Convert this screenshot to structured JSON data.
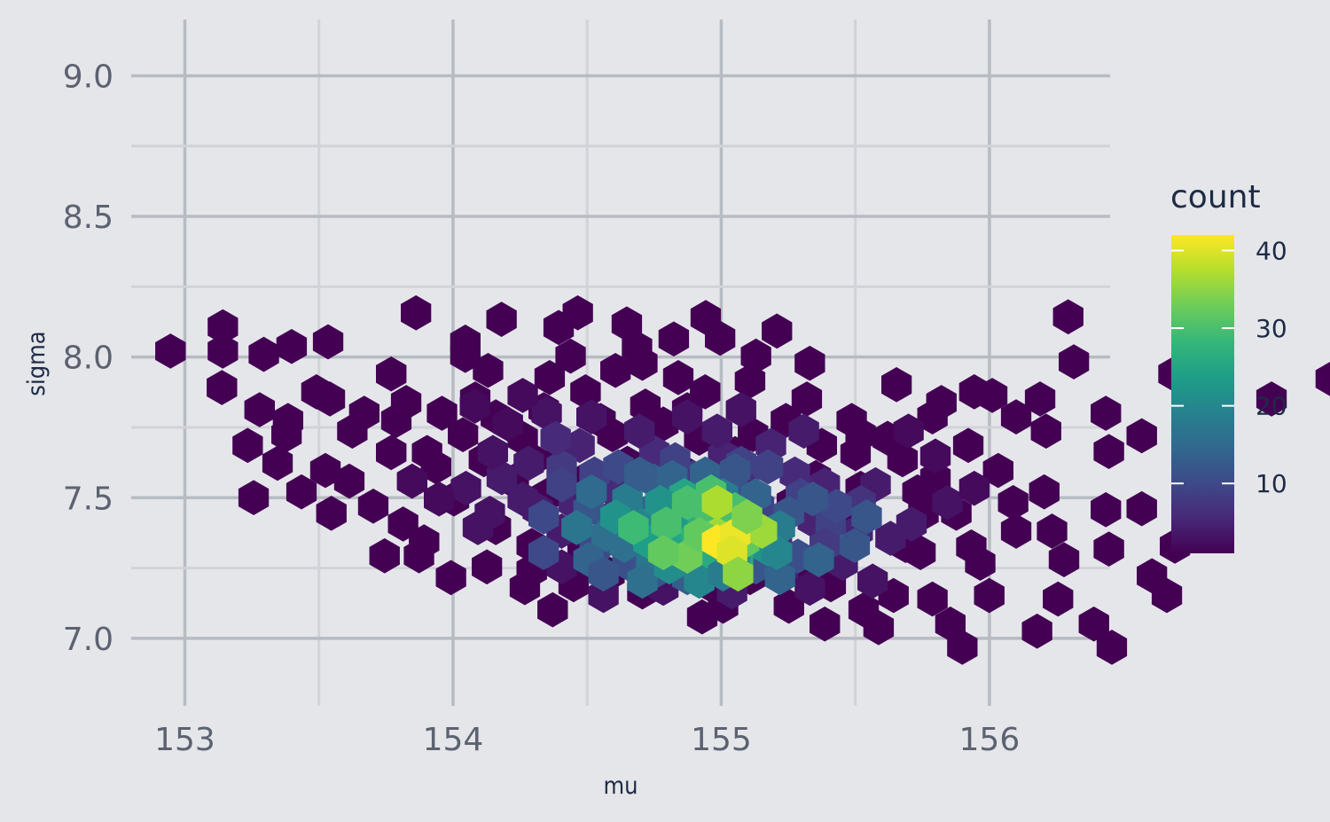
{
  "chart_data": {
    "type": "heatmap",
    "subtype": "hexbin",
    "xlabel": "mu",
    "ylabel": "sigma",
    "xlim": [
      152.8,
      156.45
    ],
    "ylim": [
      6.76,
      9.2
    ],
    "x_ticks": [
      153,
      154,
      155,
      156
    ],
    "y_ticks": [
      7.0,
      7.5,
      8.0,
      8.5,
      9.0
    ],
    "x_tick_labels": [
      "153",
      "154",
      "155",
      "156"
    ],
    "y_tick_labels": [
      "7.0",
      "7.5",
      "8.0",
      "8.5",
      "9.0"
    ],
    "grid": true,
    "legend": {
      "title": "count",
      "placement": "right",
      "colormap": "viridis",
      "range": [
        1,
        42
      ],
      "ticks": [
        10,
        20,
        30,
        40
      ],
      "tick_labels": [
        "10",
        "20",
        "30",
        "40"
      ]
    },
    "colors": [
      "#440154",
      "#482878",
      "#3E4A89",
      "#31688E",
      "#26828E",
      "#1F9E89",
      "#35B779",
      "#6DCD59",
      "#B4DE2C",
      "#FDE725"
    ],
    "bin_width": {
      "mu": 0.1115,
      "sigma": 0.0635
    },
    "grid_origin": {
      "mu": 153.0,
      "sigma": 7.0
    },
    "bins": [
      [
        1.27,
        8.04,
        1
      ],
      [
        1.27,
        8.72,
        1
      ],
      [
        2.64,
        7.95,
        1
      ],
      [
        3.57,
        8.17,
        1
      ],
      [
        4.79,
        8.3,
        1
      ],
      [
        9.38,
        8.29,
        1
      ],
      [
        7.73,
        9.11,
        1
      ],
      [
        10.59,
        8.93,
        1
      ],
      [
        13.14,
        9.11,
        1
      ],
      [
        14.78,
        8.8,
        1
      ],
      [
        17.42,
        8.98,
        1
      ],
      [
        16.35,
        8.38,
        1
      ],
      [
        12.5,
        8.7,
        1
      ],
      [
        15.12,
        8.13,
        1
      ],
      [
        9.38,
        7.92,
        1
      ],
      [
        10.14,
        7.5,
        1
      ],
      [
        -0.48,
        8.04,
        1
      ],
      [
        1.24,
        7.02,
        1
      ],
      [
        4.85,
        6.7,
        1
      ],
      [
        3.45,
        6.1,
        1
      ],
      [
        7.07,
        6.1,
        1
      ],
      [
        9.71,
        6.7,
        1
      ],
      [
        2.3,
        3.94,
        1
      ],
      [
        6.68,
        2.31,
        1
      ],
      [
        7.83,
        2.31,
        1
      ],
      [
        11.37,
        1.42,
        1
      ],
      [
        16.35,
        3.04,
        1
      ],
      [
        17.73,
        1.42,
        1
      ],
      [
        18.4,
        5.17,
        1
      ],
      [
        22.43,
        5.17,
        1
      ],
      [
        25.1,
        4.48,
        1
      ],
      [
        28.74,
        4.1,
        1
      ],
      [
        30.9,
        5.23,
        1
      ],
      [
        32.0,
        5.67,
        1
      ],
      [
        36.34,
        6.7,
        1
      ],
      [
        38.32,
        7.26,
        1
      ],
      [
        29.54,
        9.0,
        1
      ],
      [
        29.73,
        7.74,
        1
      ],
      [
        33.06,
        7.4,
        1
      ],
      [
        32.0,
        3.63,
        1
      ],
      [
        33.11,
        2.58,
        1
      ],
      [
        32.34,
        1.75,
        1
      ],
      [
        32.84,
        1.2,
        1
      ],
      [
        29.2,
        1.1,
        1
      ],
      [
        30.4,
        0.4,
        1
      ],
      [
        31.0,
        -0.25,
        1
      ],
      [
        26.3,
        2.56,
        1
      ],
      [
        26.9,
        1.2,
        1
      ],
      [
        28.5,
        0.2,
        1
      ],
      [
        26.0,
        -0.25,
        1
      ],
      [
        25.6,
        0.4,
        1
      ],
      [
        24.1,
        2.6,
        1
      ],
      [
        21.6,
        2.5,
        1
      ],
      [
        20.4,
        2.1,
        1
      ],
      [
        19.6,
        2.7,
        1
      ],
      [
        22.6,
        4.2,
        1
      ],
      [
        21.1,
        4.5,
        1
      ],
      [
        20.3,
        3.8,
        1
      ],
      [
        18.6,
        4.0,
        1
      ],
      [
        16.6,
        4.7,
        1
      ],
      [
        12.0,
        6.4,
        1
      ],
      [
        11.3,
        5.6,
        1
      ],
      [
        12.6,
        5.2,
        1
      ],
      [
        13.9,
        6.1,
        1
      ],
      [
        17.4,
        6.9,
        1
      ],
      [
        18.9,
        7.2,
        1
      ],
      [
        20.8,
        6.7,
        1
      ],
      [
        23.8,
        7.1,
        1
      ],
      [
        25.3,
        6.6,
        1
      ],
      [
        27.0,
        6.8,
        1
      ],
      [
        27.8,
        6.2,
        1
      ],
      [
        28.8,
        5.8,
        1
      ],
      [
        30.8,
        6.3,
        1
      ],
      [
        29.0,
        3.0,
        1
      ],
      [
        30.8,
        3.6,
        1
      ],
      [
        27.8,
        3.0,
        1
      ],
      [
        25.0,
        1.1,
        1
      ],
      [
        23.7,
        1.2,
        1
      ],
      [
        14.2,
        3.3,
        1
      ],
      [
        15.4,
        2.6,
        1
      ],
      [
        17.7,
        2.5,
        1
      ],
      [
        19.3,
        1.9,
        1
      ],
      [
        21.6,
        1.5,
        1
      ],
      [
        10.4,
        3.1,
        1
      ],
      [
        9.0,
        3.9,
        1
      ],
      [
        8.4,
        4.8,
        1
      ],
      [
        6.9,
        5.2,
        1
      ],
      [
        5.6,
        5.8,
        1
      ],
      [
        4.4,
        6.9,
        1
      ],
      [
        6.9,
        7.4,
        1
      ],
      [
        17.9,
        8.4,
        1
      ],
      [
        19.1,
        7.9,
        1
      ],
      [
        19.8,
        8.6,
        1
      ],
      [
        13.4,
        6.9,
        1
      ],
      [
        12.9,
        7.9,
        1
      ],
      [
        14.4,
        7.5,
        1
      ],
      [
        16.5,
        7.3,
        1
      ],
      [
        15.5,
        5.7,
        1
      ],
      [
        14.8,
        4.9,
        1
      ],
      [
        13.5,
        4.5,
        1
      ],
      [
        12.1,
        4.0,
        1
      ],
      [
        11.0,
        4.4,
        1
      ],
      [
        10.0,
        5.0,
        1
      ],
      [
        9.3,
        5.7,
        1
      ],
      [
        8.6,
        6.3,
        1
      ],
      [
        7.4,
        6.6,
        1
      ],
      [
        6.0,
        6.3,
        1
      ],
      [
        4.7,
        4.7,
        1
      ],
      [
        3.1,
        4.9,
        1
      ],
      [
        3.4,
        5.7,
        1
      ],
      [
        2.1,
        5.4,
        1
      ],
      [
        2.5,
        6.4,
        1
      ],
      [
        22.1,
        3.5,
        1
      ],
      [
        24.5,
        4.1,
        1
      ],
      [
        26.2,
        5.4,
        1
      ],
      [
        27.2,
        4.7,
        1
      ],
      [
        27.7,
        3.8,
        1
      ],
      [
        24.7,
        3.5,
        1
      ],
      [
        23.5,
        5.6,
        1
      ],
      [
        22.3,
        6.1,
        1
      ],
      [
        25.0,
        6.2,
        1
      ],
      [
        26.4,
        6.9,
        1
      ],
      [
        28.6,
        6.7,
        1
      ],
      [
        29.4,
        2.2,
        1
      ],
      [
        30.9,
        2.5,
        1
      ],
      [
        24.6,
        2.4,
        1
      ],
      [
        18.9,
        1.7,
        1
      ],
      [
        16.3,
        1.8,
        1
      ],
      [
        15.3,
        1.3,
        1
      ],
      [
        14.2,
        1.8,
        1
      ],
      [
        13.3,
        2.4,
        1
      ],
      [
        11.6,
        2.6,
        1
      ],
      [
        8.9,
        1.7,
        1
      ],
      [
        8.0,
        2.7,
        1
      ],
      [
        10.1,
        2.0,
        1
      ],
      [
        13.0,
        1.5,
        1
      ],
      [
        12.3,
        0.8,
        1
      ],
      [
        11.6,
        1.9,
        1
      ],
      [
        20.2,
        0.9,
        1
      ],
      [
        21.4,
        0.4,
        1
      ],
      [
        22.7,
        0.8,
        1
      ],
      [
        23.2,
        0.3,
        1
      ],
      [
        18.0,
        0.9,
        1
      ],
      [
        17.3,
        0.6,
        1
      ],
      [
        6.3,
        3.7,
        1
      ],
      [
        7.3,
        3.2,
        1
      ],
      [
        5.5,
        4.4,
        1
      ],
      [
        4.9,
        3.5,
        1
      ],
      [
        3.9,
        4.1,
        1
      ],
      [
        8.1,
        5.2,
        1
      ],
      [
        10.4,
        6.2,
        1
      ],
      [
        12.2,
        7.3,
        1
      ],
      [
        15.4,
        6.5,
        1
      ],
      [
        16.0,
        6.0,
        1
      ],
      [
        17.2,
        5.6,
        1
      ],
      [
        19.0,
        5.7,
        1
      ],
      [
        20.1,
        6.1,
        1
      ],
      [
        21.3,
        5.4,
        1
      ],
      [
        22.6,
        5.7,
        1
      ],
      [
        24.0,
        5.0,
        1
      ],
      [
        25.8,
        3.5,
        1
      ],
      [
        26.6,
        2.1,
        1
      ],
      [
        20.9,
        7.7,
        1
      ],
      [
        15.3,
        7.7,
        1
      ],
      [
        16.8,
        6.4,
        1
      ],
      [
        14.3,
        5.7,
        1
      ],
      [
        11.6,
        5.0,
        1
      ],
      [
        11.8,
        3.6,
        4
      ],
      [
        14.0,
        2.7,
        3
      ],
      [
        17.0,
        3.7,
        5
      ],
      [
        19.1,
        3.2,
        6
      ],
      [
        21.0,
        3.3,
        5
      ],
      [
        23.1,
        4.3,
        4
      ],
      [
        20.4,
        4.6,
        6
      ],
      [
        18.0,
        5.1,
        5
      ],
      [
        15.7,
        5.2,
        6
      ],
      [
        13.2,
        5.4,
        5
      ],
      [
        10.6,
        4.5,
        4
      ],
      [
        9.8,
        3.1,
        3
      ],
      [
        12.6,
        2.0,
        3
      ],
      [
        15.0,
        2.1,
        4
      ],
      [
        17.5,
        1.8,
        5
      ],
      [
        20.0,
        1.9,
        5
      ],
      [
        22.0,
        2.1,
        4
      ],
      [
        23.6,
        2.8,
        4
      ],
      [
        22.5,
        3.0,
        5
      ],
      [
        19.8,
        2.7,
        6
      ],
      [
        16.7,
        2.8,
        6
      ],
      [
        14.3,
        3.4,
        5
      ],
      [
        12.6,
        3.0,
        4
      ],
      [
        13.0,
        3.8,
        5
      ],
      [
        16.0,
        4.1,
        7
      ],
      [
        18.7,
        4.4,
        6
      ],
      [
        21.4,
        4.3,
        5
      ],
      [
        15.2,
        5.8,
        4
      ],
      [
        11.5,
        4.9,
        4
      ],
      [
        17.0,
        4.5,
        8
      ],
      [
        14.4,
        4.1,
        6
      ],
      [
        19.6,
        5.4,
        5
      ],
      [
        20.7,
        5.8,
        4
      ],
      [
        13.6,
        6.2,
        3
      ],
      [
        12.1,
        6.3,
        3
      ],
      [
        18.6,
        6.4,
        3
      ],
      [
        16.8,
        6.2,
        3
      ],
      [
        17.8,
        5.8,
        4
      ],
      [
        10.8,
        6.0,
        2
      ],
      [
        9.7,
        6.5,
        2
      ],
      [
        11.3,
        6.8,
        2
      ],
      [
        19.2,
        3.7,
        9
      ],
      [
        17.7,
        3.0,
        10
      ],
      [
        16.8,
        2.2,
        9
      ],
      [
        15.4,
        2.6,
        8
      ],
      [
        14.8,
        3.6,
        11
      ],
      [
        13.7,
        4.6,
        9
      ],
      [
        12.6,
        4.8,
        8
      ],
      [
        21.6,
        3.2,
        9
      ],
      [
        22.6,
        3.8,
        7
      ],
      [
        20.6,
        4.0,
        9
      ],
      [
        19.5,
        4.8,
        9
      ],
      [
        18.6,
        4.9,
        9
      ],
      [
        12.4,
        5.6,
        6
      ],
      [
        18.3,
        1.3,
        4
      ],
      [
        20.9,
        1.4,
        3
      ],
      [
        23.0,
        1.6,
        3
      ],
      [
        14.0,
        1.2,
        3
      ],
      [
        16.0,
        1.4,
        3
      ],
      [
        21.4,
        2.6,
        8
      ],
      [
        24.3,
        3.2,
        4
      ],
      [
        25.5,
        3.8,
        3
      ],
      [
        25.1,
        5.1,
        2
      ],
      [
        24.2,
        5.8,
        2
      ],
      [
        26.4,
        4.2,
        2
      ],
      [
        11.3,
        3.9,
        4
      ],
      [
        10.2,
        3.5,
        3
      ],
      [
        9.4,
        4.2,
        3
      ],
      [
        8.5,
        3.9,
        2
      ],
      [
        7.6,
        4.4,
        2
      ],
      [
        10.3,
        5.2,
        3
      ],
      [
        17.4,
        2.5,
        17
      ],
      [
        18.6,
        2.4,
        14
      ],
      [
        15.9,
        3.1,
        16
      ],
      [
        15.6,
        3.6,
        14
      ],
      [
        14.3,
        3.1,
        13
      ],
      [
        13.5,
        3.6,
        12
      ],
      [
        19.4,
        2.9,
        13
      ],
      [
        20.2,
        3.5,
        12
      ],
      [
        18.3,
        4.2,
        11
      ],
      [
        17.3,
        3.3,
        14
      ],
      [
        16.4,
        3.9,
        15
      ],
      [
        15.7,
        4.4,
        13
      ],
      [
        14.5,
        4.8,
        10
      ],
      [
        16.4,
        5.0,
        9
      ],
      [
        20.5,
        2.3,
        11
      ],
      [
        16.8,
        1.7,
        13
      ],
      [
        15.8,
        1.9,
        12
      ],
      [
        14.8,
        2.1,
        11
      ],
      [
        13.7,
        2.5,
        10
      ],
      [
        19.1,
        2.0,
        12
      ],
      [
        21.8,
        3.7,
        10
      ],
      [
        12.6,
        4.3,
        9
      ],
      [
        17.7,
        3.7,
        18
      ],
      [
        16.0,
        2.6,
        20
      ],
      [
        15.6,
        2.2,
        17
      ],
      [
        14.7,
        2.6,
        16
      ],
      [
        18.1,
        2.9,
        22
      ],
      [
        16.7,
        2.8,
        25
      ],
      [
        15.2,
        3.2,
        20
      ],
      [
        14.1,
        2.9,
        16
      ],
      [
        18.1,
        3.5,
        20
      ],
      [
        16.9,
        3.3,
        24
      ],
      [
        17.2,
        3.9,
        22
      ],
      [
        14.8,
        3.9,
        18
      ],
      [
        13.1,
        3.1,
        17
      ],
      [
        13.6,
        4.1,
        15
      ],
      [
        19.5,
        2.5,
        22
      ],
      [
        19.9,
        3.1,
        18
      ],
      [
        17.4,
        4.6,
        14
      ],
      [
        15.2,
        4.6,
        13
      ],
      [
        16.3,
        4.5,
        14
      ],
      [
        13.5,
        2.2,
        14
      ],
      [
        15.3,
        1.6,
        16
      ],
      [
        14.0,
        1.8,
        12
      ],
      [
        19.9,
        1.7,
        14
      ],
      [
        21.2,
        2.2,
        14
      ],
      [
        22.4,
        2.6,
        12
      ],
      [
        22.8,
        3.4,
        12
      ],
      [
        21.0,
        3.9,
        12
      ],
      [
        19.1,
        4.0,
        14
      ],
      [
        18.4,
        4.7,
        12
      ],
      [
        12.0,
        3.4,
        10
      ],
      [
        12.0,
        2.4,
        10
      ],
      [
        17.1,
        3.0,
        27
      ],
      [
        16.3,
        3.4,
        23
      ],
      [
        18.5,
        2.2,
        26
      ],
      [
        19.0,
        3.1,
        26
      ],
      [
        17.3,
        2.2,
        26
      ],
      [
        16.7,
        4.0,
        25
      ],
      [
        15.9,
        3.8,
        22
      ],
      [
        15.5,
        2.7,
        24
      ],
      [
        14.4,
        3.4,
        22
      ],
      [
        18.0,
        4.0,
        18
      ],
      [
        19.8,
        2.4,
        20
      ],
      [
        16.2,
        2.0,
        21
      ],
      [
        18.4,
        2.1,
        21
      ],
      [
        17.2,
        1.6,
        20
      ],
      [
        18.0,
        1.8,
        18
      ],
      [
        17.9,
        3.2,
        36
      ],
      [
        18.7,
        2.7,
        32
      ],
      [
        16.1,
        3.2,
        30
      ],
      [
        17.6,
        4.1,
        30
      ],
      [
        18.4,
        3.6,
        30
      ],
      [
        17.4,
        3.7,
        30
      ],
      [
        16.8,
        2.3,
        33
      ],
      [
        15.0,
        3.1,
        29
      ],
      [
        16.8,
        3.8,
        30
      ],
      [
        17.2,
        2.9,
        32
      ],
      [
        18.6,
        3.0,
        38
      ],
      [
        19.3,
        3.0,
        36
      ],
      [
        17.8,
        2.7,
        42
      ],
      [
        18.4,
        2.9,
        41
      ],
      [
        17.8,
        3.8,
        37
      ],
      [
        18.3,
        2.4,
        40
      ],
      [
        18.8,
        3.4,
        34
      ],
      [
        16.0,
        2.4,
        32
      ],
      [
        18.5,
        1.8,
        35
      ]
    ]
  }
}
